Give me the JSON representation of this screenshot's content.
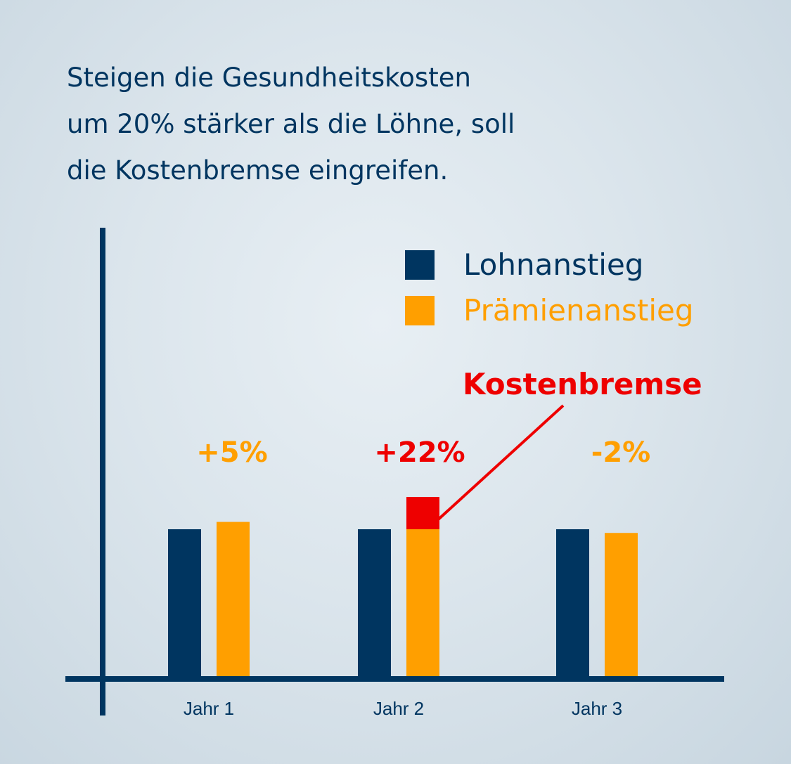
{
  "headline": {
    "line1": "Steigen die Gesundheitskosten",
    "line2": "um 20% stärker als die Löhne, soll",
    "line3": "die Kostenbremse eingreifen."
  },
  "legend": [
    {
      "label": "Lohnanstieg",
      "color": "#003560"
    },
    {
      "label": "Prämienanstieg",
      "color": "#ff9f00"
    }
  ],
  "annotation": {
    "label": "Kostenbremse",
    "color": "#ee0000"
  },
  "chart_data": {
    "type": "bar",
    "categories": [
      "Jahr 1",
      "Jahr 2",
      "Jahr 3"
    ],
    "series": [
      {
        "name": "Lohnanstieg",
        "color": "#003560",
        "values": [
          100,
          100,
          100
        ]
      },
      {
        "name": "Prämienanstieg",
        "color": "#ff9f00",
        "values": [
          105,
          100,
          97.5
        ]
      }
    ],
    "excess": {
      "category": "Jahr 2",
      "from": 100,
      "to": 122,
      "color": "#ee0000"
    },
    "data_labels": [
      {
        "category": "Jahr 1",
        "text": "+5%",
        "color": "#ff9f00"
      },
      {
        "category": "Jahr 2",
        "text": "+22%",
        "color": "#ee0000"
      },
      {
        "category": "Jahr 3",
        "text": "-2%",
        "color": "#ff9f00"
      }
    ],
    "ylim": [
      0,
      160
    ],
    "legend_position": "top-right",
    "axis_color": "#003560"
  }
}
